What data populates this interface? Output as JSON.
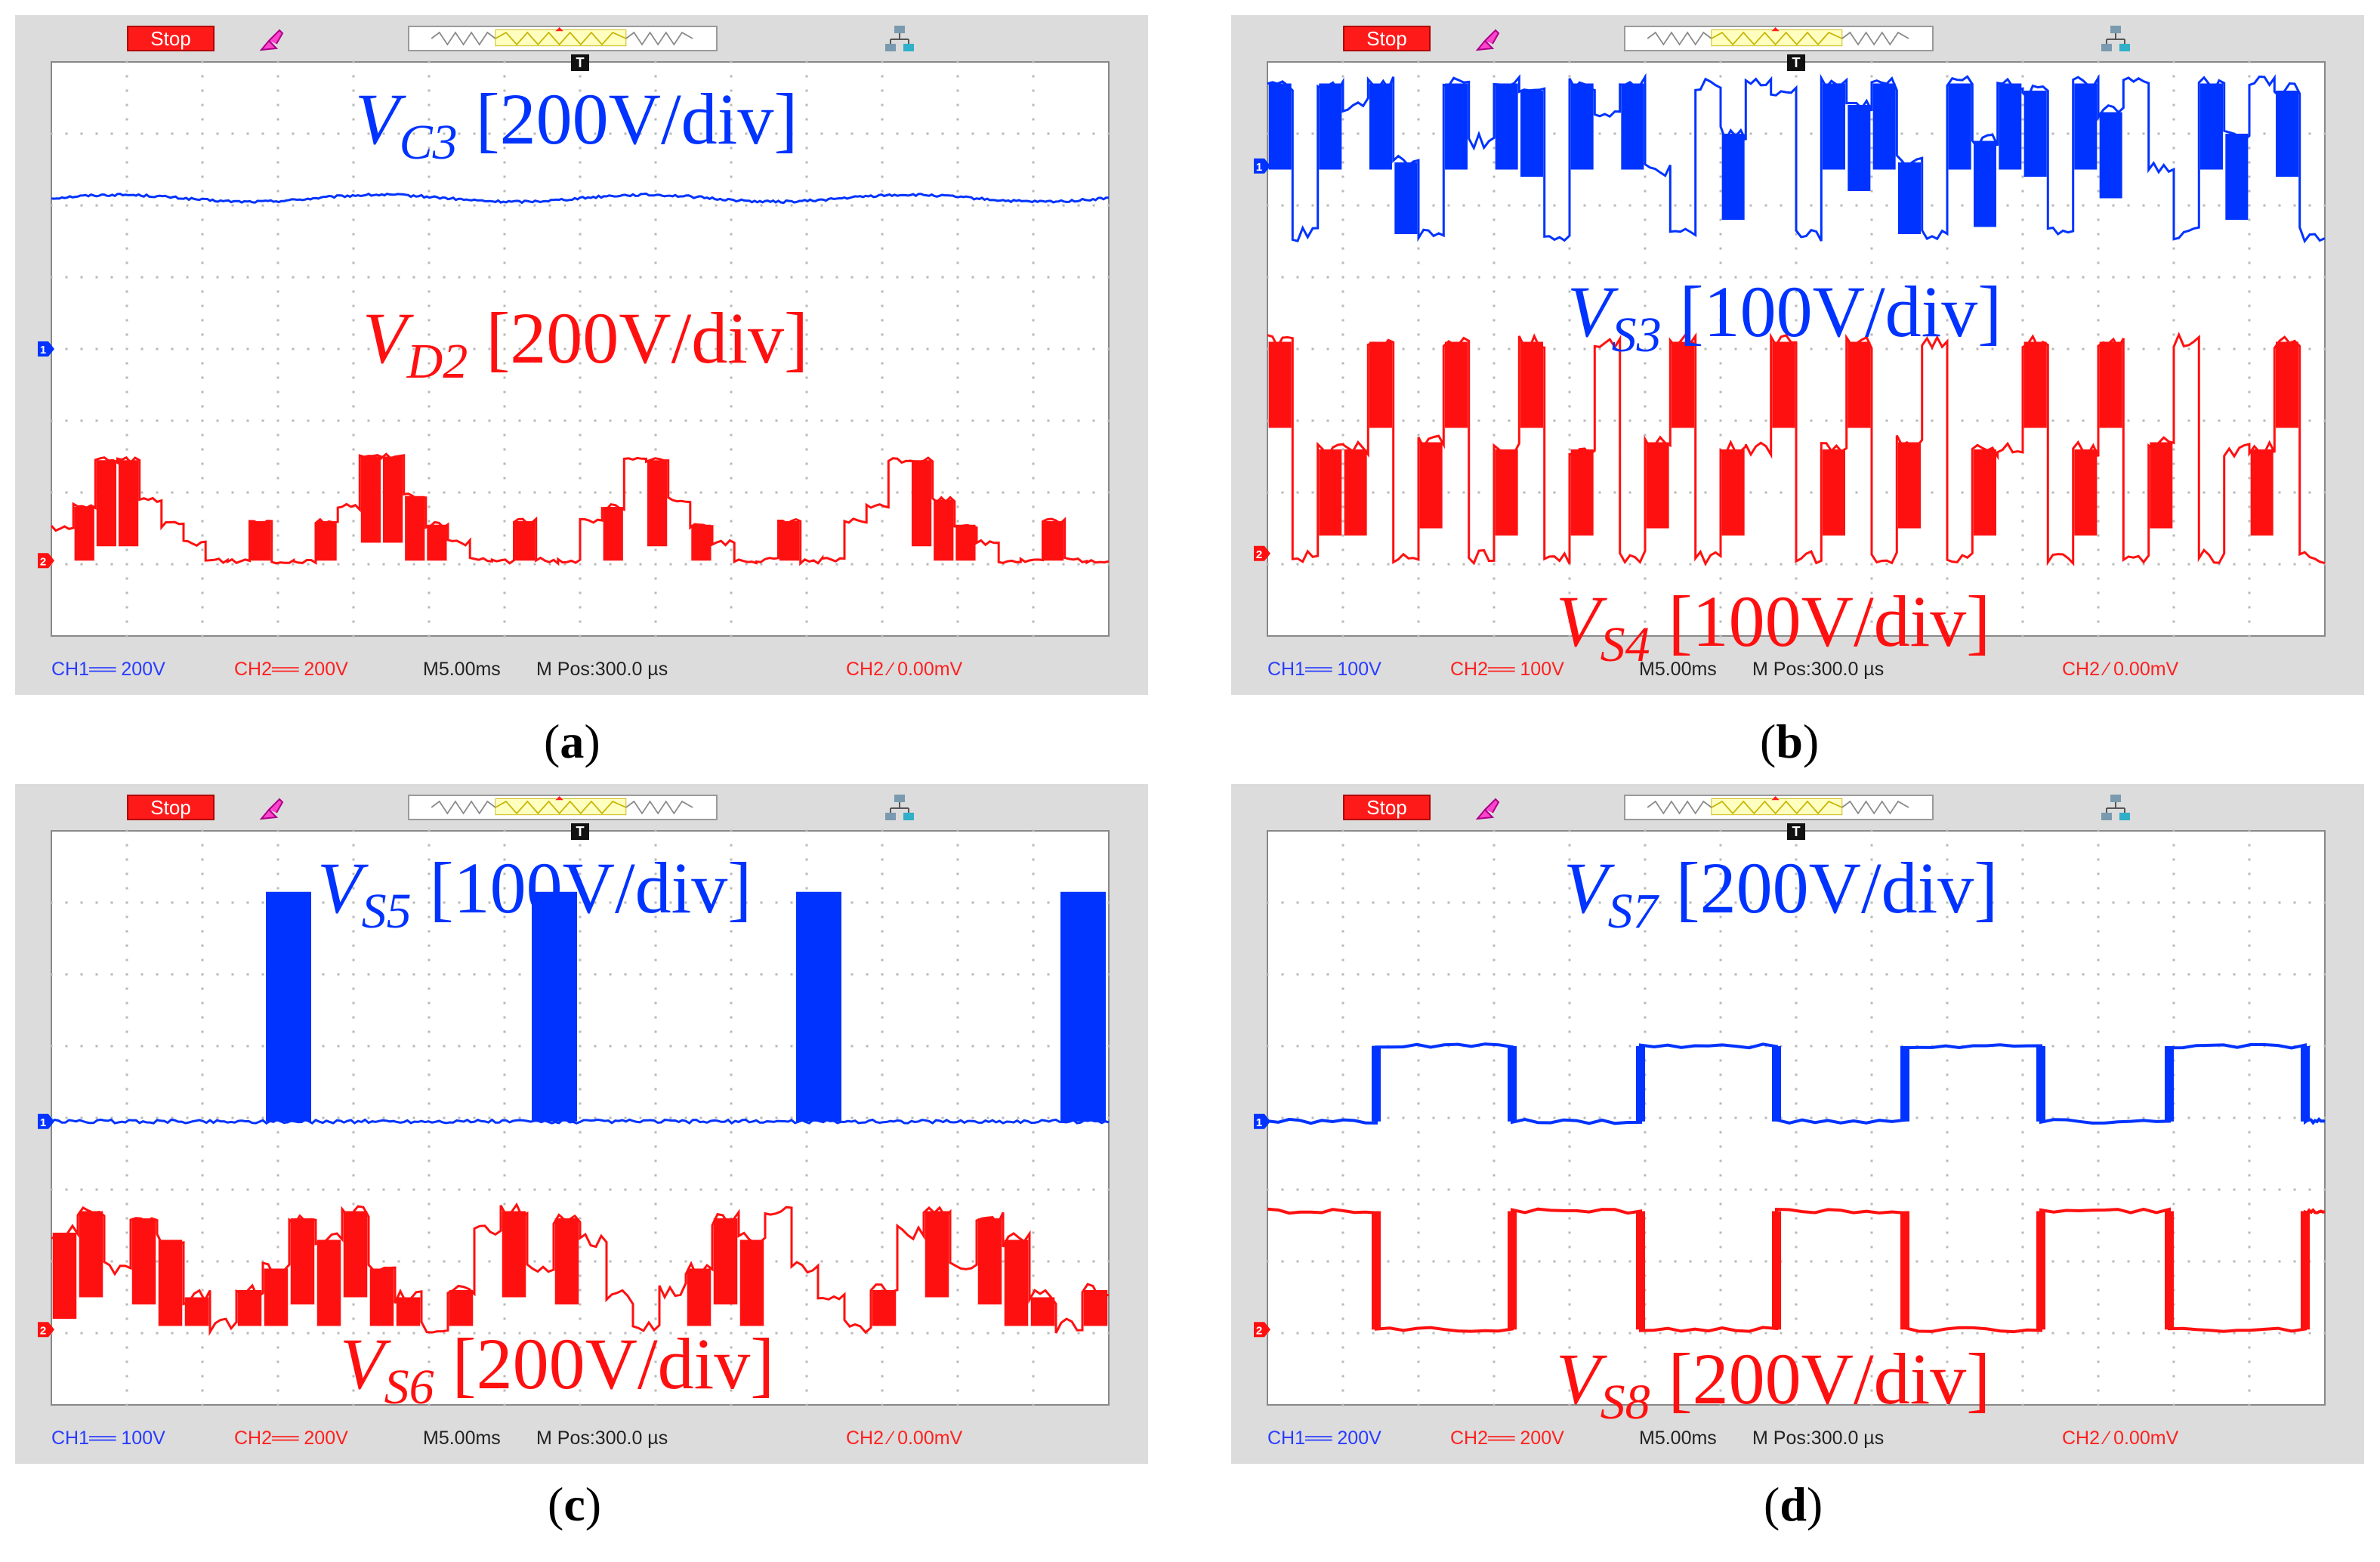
{
  "colors": {
    "ch1": "#0033ff",
    "ch2": "#ff1010",
    "screen": "#ffffff",
    "frame": "#dcdcdc"
  },
  "chart_data": [
    {
      "id": "a",
      "type": "line",
      "caption": "a",
      "stop_label": "Stop",
      "trigger_label": "T",
      "status": {
        "ch1": "CH1══ 200V",
        "ch2": "CH2══ 200V",
        "timebase": "M5.00ms",
        "mpos": "M Pos:300.0 µs",
        "trigger": "CH2 ∕ 0.00mV"
      },
      "labels": [
        {
          "channel": "ch1",
          "v": "V",
          "sub": "C3",
          "scale": " [200V/div]"
        },
        {
          "channel": "ch2",
          "v": "V",
          "sub": "D2",
          "scale": " [200V/div]"
        }
      ],
      "markers": {
        "ch1": 4.0,
        "ch2": 1.05
      },
      "signals": [
        {
          "name": "VC3",
          "channel": "ch1",
          "kind": "dc",
          "level": 6.1,
          "ripple": 0.08
        },
        {
          "name": "VD2",
          "channel": "ch2",
          "kind": "steps",
          "lo": 1.05,
          "hi": 2.1,
          "noise": 0.08,
          "levels": [
            1.5,
            1.8,
            2.45,
            2.45,
            1.9,
            1.55,
            1.3,
            1.05,
            1.05,
            1.6,
            1.05,
            1.05,
            1.6,
            1.8,
            2.5,
            2.5,
            1.95,
            1.55,
            1.3,
            1.05,
            1.05,
            1.6,
            1.05,
            1.05,
            1.6,
            1.8,
            2.45,
            2.45,
            1.9,
            1.55,
            1.3,
            1.05,
            1.05,
            1.6,
            1.05,
            1.05,
            1.6,
            1.8,
            2.45,
            2.45,
            1.9,
            1.55,
            1.3,
            1.05,
            1.05,
            1.6,
            1.05,
            1.05
          ]
        }
      ]
    },
    {
      "id": "b",
      "type": "line",
      "caption": "b",
      "stop_label": "Stop",
      "trigger_label": "T",
      "status": {
        "ch1": "CH1══ 100V",
        "ch2": "CH2══ 100V",
        "timebase": "M5.00ms",
        "mpos": "M Pos:300.0 µs",
        "trigger": "CH2 ∕ 0.00mV"
      },
      "labels": [
        {
          "channel": "ch1",
          "v": "V",
          "sub": "S3",
          "scale": " [100V/div]"
        },
        {
          "channel": "ch2",
          "v": "V",
          "sub": "S4",
          "scale": " [100V/div]"
        }
      ],
      "markers": {
        "ch1": 6.55,
        "ch2": 1.15
      },
      "signals": [
        {
          "name": "VS3",
          "channel": "ch1",
          "kind": "steps",
          "noise": 0.2,
          "levels": [
            7.7,
            5.6,
            7.7,
            7.4,
            7.7,
            6.6,
            5.6,
            7.7,
            6.9,
            7.7,
            7.6,
            5.6,
            7.7,
            7.3,
            7.7,
            6.5,
            5.6,
            7.7,
            7.0,
            7.7,
            7.6,
            5.6,
            7.7,
            7.4,
            7.7,
            6.6,
            5.6,
            7.7,
            6.9,
            7.7,
            7.6,
            5.6,
            7.7,
            7.3,
            7.7,
            6.5,
            5.6,
            7.7,
            7.0,
            7.7,
            7.6,
            5.6
          ]
        },
        {
          "name": "VS4",
          "channel": "ch2",
          "kind": "steps",
          "noise": 0.2,
          "levels": [
            4.1,
            1.1,
            2.6,
            2.6,
            4.1,
            1.1,
            2.7,
            4.1,
            1.1,
            2.6,
            4.1,
            1.1,
            2.6,
            4.1,
            1.1,
            2.7,
            4.1,
            1.1,
            2.6,
            2.6,
            4.1,
            1.1,
            2.6,
            4.1,
            1.1,
            2.7,
            4.1,
            1.1,
            2.6,
            2.6,
            4.1,
            1.1,
            2.6,
            4.1,
            1.1,
            2.7,
            4.1,
            1.1,
            2.6,
            2.6,
            4.1,
            1.1
          ]
        }
      ]
    },
    {
      "id": "c",
      "type": "line",
      "caption": "c",
      "stop_label": "Stop",
      "trigger_label": "T",
      "status": {
        "ch1": "CH1══ 100V",
        "ch2": "CH2══ 200V",
        "timebase": "M5.00ms",
        "mpos": "M Pos:300.0 µs",
        "trigger": "CH2 ∕ 0.00mV"
      },
      "labels": [
        {
          "channel": "ch1",
          "v": "V",
          "sub": "S5",
          "scale": " [100V/div]"
        },
        {
          "channel": "ch2",
          "v": "V",
          "sub": "S6",
          "scale": " [200V/div]"
        }
      ],
      "markers": {
        "ch1": 3.95,
        "ch2": 1.05
      },
      "signals": [
        {
          "name": "VS5",
          "channel": "ch1",
          "kind": "pulses",
          "base": 3.95,
          "high": 7.15,
          "width": 0.3,
          "starts": [
            1.42,
            3.18,
            4.93,
            6.68
          ]
        },
        {
          "name": "VS6",
          "channel": "ch2",
          "kind": "steps",
          "noise": 0.2,
          "levels": [
            2.4,
            2.7,
            1.9,
            2.6,
            2.3,
            1.5,
            1.1,
            1.6,
            1.9,
            2.6,
            2.3,
            2.7,
            1.9,
            1.5,
            1.1,
            1.6,
            2.4,
            2.7,
            1.9,
            2.6,
            2.3,
            1.5,
            1.1,
            1.6,
            1.9,
            2.6,
            2.3,
            2.7,
            1.9,
            1.5,
            1.1,
            1.6,
            2.4,
            2.7,
            1.9,
            2.6,
            2.3,
            1.5,
            1.1,
            1.6
          ]
        }
      ]
    },
    {
      "id": "d",
      "type": "line",
      "caption": "d",
      "stop_label": "Stop",
      "trigger_label": "T",
      "status": {
        "ch1": "CH1══ 200V",
        "ch2": "CH2══ 200V",
        "timebase": "M5.00ms",
        "mpos": "M Pos:300.0 µs",
        "trigger": "CH2 ∕ 0.00mV"
      },
      "labels": [
        {
          "channel": "ch1",
          "v": "V",
          "sub": "S7",
          "scale": " [200V/div]"
        },
        {
          "channel": "ch2",
          "v": "V",
          "sub": "S8",
          "scale": " [200V/div]"
        }
      ],
      "markers": {
        "ch1": 3.95,
        "ch2": 1.05
      },
      "signals": [
        {
          "name": "VS7",
          "channel": "ch1",
          "kind": "square",
          "lo": 3.95,
          "hi": 5.0,
          "inverted": false,
          "edges": [
            0.72,
            1.62,
            2.47,
            3.37,
            4.22,
            5.12,
            5.97,
            6.87
          ]
        },
        {
          "name": "VS8",
          "channel": "ch2",
          "kind": "square",
          "lo": 1.05,
          "hi": 2.7,
          "inverted": true,
          "edges": [
            0.72,
            1.62,
            2.47,
            3.37,
            4.22,
            5.12,
            5.97,
            6.87
          ]
        }
      ]
    }
  ]
}
